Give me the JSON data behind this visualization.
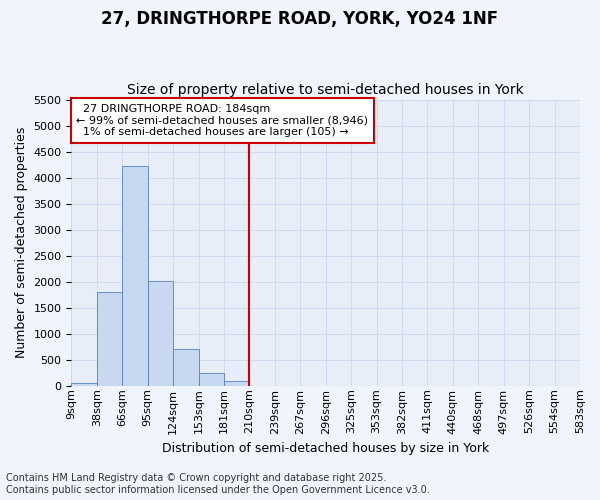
{
  "title_line1": "27, DRINGTHORPE ROAD, YORK, YO24 1NF",
  "title_line2": "Size of property relative to semi-detached houses in York",
  "xlabel": "Distribution of semi-detached houses by size in York",
  "ylabel": "Number of semi-detached properties",
  "bar_values": [
    50,
    1800,
    4230,
    2010,
    710,
    240,
    90,
    5,
    2,
    1,
    1,
    0,
    0,
    0,
    0,
    0,
    0,
    0,
    0,
    0
  ],
  "bar_labels": [
    "9sqm",
    "38sqm",
    "66sqm",
    "95sqm",
    "124sqm",
    "153sqm",
    "181sqm",
    "210sqm",
    "239sqm",
    "267sqm",
    "296sqm",
    "325sqm",
    "353sqm",
    "382sqm",
    "411sqm",
    "440sqm",
    "468sqm",
    "497sqm",
    "526sqm",
    "554sqm",
    "583sqm"
  ],
  "bar_color": "#c8d8f0",
  "bar_edge_color": "#5580c0",
  "vline_index": 6,
  "vline_color": "#cc0000",
  "ylim": [
    0,
    5500
  ],
  "yticks": [
    0,
    500,
    1000,
    1500,
    2000,
    2500,
    3000,
    3500,
    4000,
    4500,
    5000,
    5500
  ],
  "annotation_title": "27 DRINGTHORPE ROAD: 184sqm",
  "annotation_line1": "← 99% of semi-detached houses are smaller (8,946)",
  "annotation_line2": "1% of semi-detached houses are larger (105) →",
  "annotation_box_facecolor": "#ffffff",
  "annotation_box_edgecolor": "#cc0000",
  "grid_color": "#c8d8f0",
  "plot_bg_color": "#e8eef8",
  "fig_bg_color": "#f0f4fc",
  "footer_line1": "Contains HM Land Registry data © Crown copyright and database right 2025.",
  "footer_line2": "Contains public sector information licensed under the Open Government Licence v3.0.",
  "title_fontsize": 12,
  "subtitle_fontsize": 10,
  "axis_label_fontsize": 9,
  "tick_fontsize": 8,
  "annotation_fontsize": 8,
  "footer_fontsize": 7
}
